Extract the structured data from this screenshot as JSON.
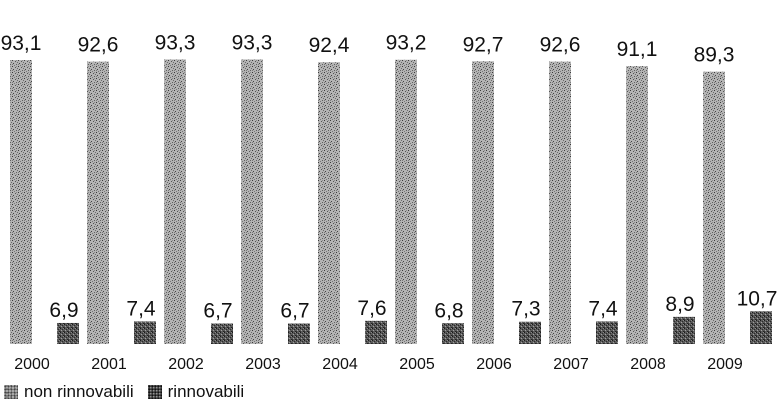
{
  "chart_data": {
    "type": "bar",
    "categories": [
      "2000",
      "2001",
      "2002",
      "2003",
      "2004",
      "2005",
      "2006",
      "2007",
      "2008",
      "2009"
    ],
    "series": [
      {
        "name": "non rinnovabili",
        "values": [
          93.1,
          92.6,
          93.3,
          93.3,
          92.4,
          93.2,
          92.7,
          92.6,
          91.1,
          89.3
        ],
        "labels": [
          "93,1",
          "92,6",
          "93,3",
          "93,3",
          "92,4",
          "93,2",
          "92,7",
          "92,6",
          "91,1",
          "89,3"
        ]
      },
      {
        "name": "rinnovabili",
        "values": [
          6.9,
          7.4,
          6.7,
          6.7,
          7.6,
          6.8,
          7.3,
          7.4,
          8.9,
          10.7
        ],
        "labels": [
          "6,9",
          "7,4",
          "6,7",
          "6,7",
          "7,6",
          "6,8",
          "7,3",
          "7,4",
          "8,9",
          "10,7"
        ]
      }
    ],
    "title": "",
    "xlabel": "",
    "ylabel": "",
    "ylim": [
      0,
      100
    ],
    "grid": false,
    "legend_position": "bottom-left",
    "colors": {
      "non_rinnovabili": "#a8a8a8",
      "rinnovabili": "#4a4a4a"
    }
  },
  "legend": {
    "items": [
      {
        "label": "non rinnovabili"
      },
      {
        "label": "rinnovabili"
      }
    ]
  }
}
